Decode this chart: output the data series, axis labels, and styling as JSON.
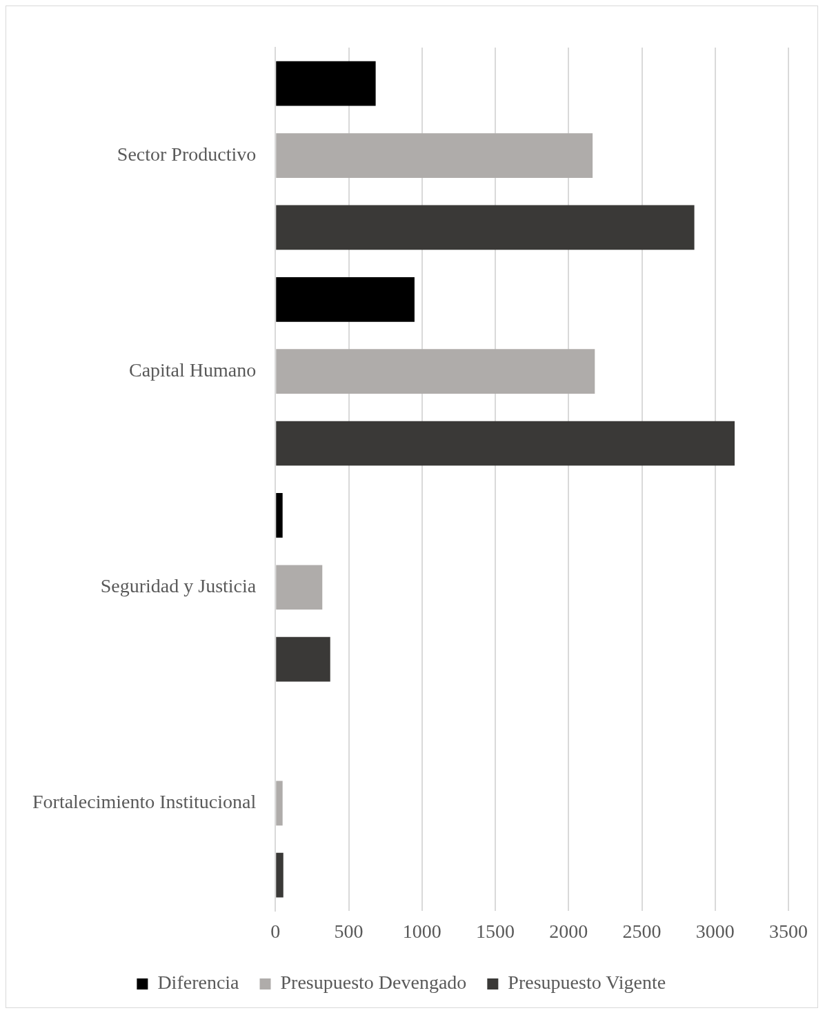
{
  "chart_data": {
    "type": "bar",
    "orientation": "horizontal",
    "categories": [
      "Sector Productivo",
      "Capital Humano",
      "Seguridad y Justicia",
      "Fortalecimiento Institucional"
    ],
    "series": [
      {
        "name": "Diferencia",
        "color": "#000000",
        "values": [
          684,
          949,
          49,
          null
        ]
      },
      {
        "name": "Presupuesto Devengado",
        "color": "#afacaa",
        "values": [
          2164,
          2179,
          320,
          49
        ]
      },
      {
        "name": "Presupuesto Vigente",
        "color": "#3a3937",
        "values": [
          2858,
          3133,
          374,
          54
        ]
      }
    ],
    "xlim": [
      0,
      3500
    ],
    "xticks": [
      0,
      500,
      1000,
      1500,
      2000,
      2500,
      3000,
      3500
    ],
    "grid": "x",
    "legend": "bottom"
  }
}
